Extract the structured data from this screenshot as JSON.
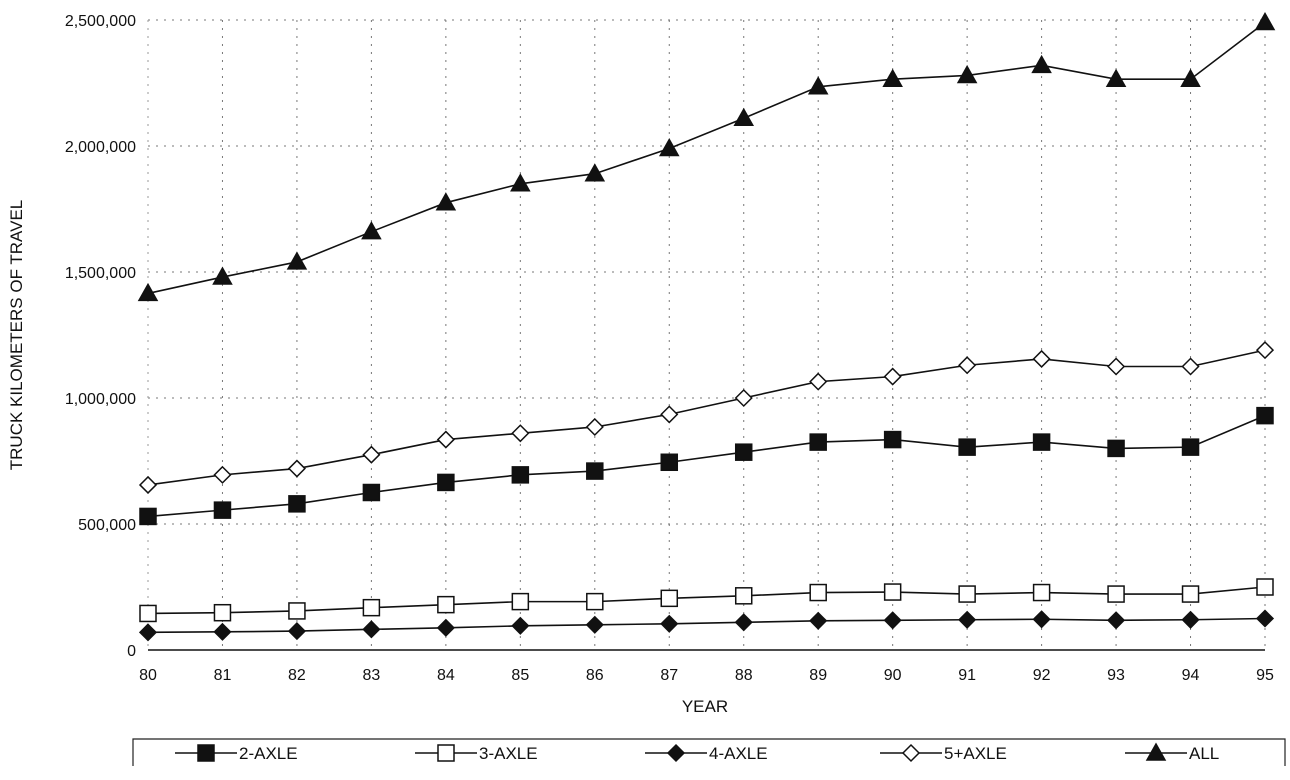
{
  "chart_data": {
    "type": "line",
    "title": "",
    "xlabel": "YEAR",
    "ylabel": "TRUCK KILOMETERS OF TRAVEL",
    "categories": [
      "80",
      "81",
      "82",
      "83",
      "84",
      "85",
      "86",
      "87",
      "88",
      "89",
      "90",
      "91",
      "92",
      "93",
      "94",
      "95"
    ],
    "ylim": [
      0,
      2500000
    ],
    "yticks": [
      0,
      500000,
      1000000,
      1500000,
      2000000,
      2500000
    ],
    "ytick_labels": [
      "0",
      "500,000",
      "1,000,000",
      "1,500,000",
      "2,000,000",
      "2,500,000"
    ],
    "grid": true,
    "grid_style": "dotted",
    "legend_position": "bottom",
    "series": [
      {
        "name": "2-AXLE",
        "marker": "square-filled",
        "values": [
          530000,
          555000,
          580000,
          625000,
          665000,
          695000,
          710000,
          745000,
          785000,
          825000,
          835000,
          805000,
          825000,
          800000,
          805000,
          930000
        ]
      },
      {
        "name": "3-AXLE",
        "marker": "square-open",
        "values": [
          145000,
          148000,
          155000,
          168000,
          180000,
          192000,
          192000,
          205000,
          215000,
          228000,
          230000,
          222000,
          228000,
          222000,
          222000,
          250000
        ]
      },
      {
        "name": "4-AXLE",
        "marker": "diamond-filled",
        "values": [
          70000,
          72000,
          75000,
          82000,
          88000,
          96000,
          100000,
          104000,
          110000,
          116000,
          118000,
          120000,
          122000,
          118000,
          120000,
          125000
        ]
      },
      {
        "name": "5+AXLE",
        "marker": "diamond-open",
        "values": [
          655000,
          695000,
          720000,
          775000,
          835000,
          860000,
          885000,
          935000,
          1000000,
          1065000,
          1085000,
          1130000,
          1155000,
          1125000,
          1125000,
          1190000
        ]
      },
      {
        "name": "ALL",
        "marker": "triangle-filled",
        "values": [
          1415000,
          1480000,
          1540000,
          1660000,
          1775000,
          1850000,
          1890000,
          1990000,
          2110000,
          2235000,
          2265000,
          2280000,
          2320000,
          2265000,
          2265000,
          2490000
        ]
      }
    ]
  }
}
